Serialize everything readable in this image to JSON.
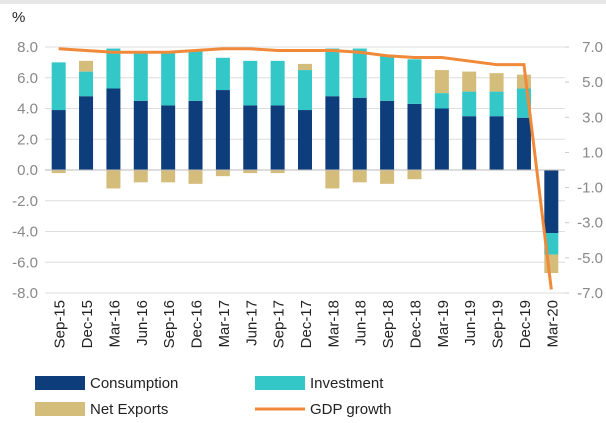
{
  "chart_data": {
    "type": "bar",
    "y_axis_label": "%",
    "categories": [
      "Sep-15",
      "Dec-15",
      "Mar-16",
      "Jun-16",
      "Sep-16",
      "Dec-16",
      "Mar-17",
      "Jun-17",
      "Sep-17",
      "Dec-17",
      "Mar-18",
      "Jun-18",
      "Sep-18",
      "Dec-18",
      "Mar-19",
      "Jun-19",
      "Sep-19",
      "Dec-19",
      "Mar-20"
    ],
    "series": [
      {
        "name": "Consumption",
        "color": "#0d3d7a",
        "values": [
          3.9,
          4.8,
          5.3,
          4.5,
          4.2,
          4.5,
          5.2,
          4.2,
          4.2,
          3.9,
          4.8,
          4.7,
          4.5,
          4.3,
          4.0,
          3.5,
          3.5,
          3.4,
          -4.1
        ]
      },
      {
        "name": "Investment",
        "color": "#33c7c7",
        "values": [
          3.1,
          1.6,
          2.6,
          3.1,
          3.4,
          3.3,
          2.1,
          2.9,
          2.9,
          2.6,
          3.1,
          3.2,
          3.0,
          2.9,
          1.0,
          1.6,
          1.6,
          1.9,
          -1.4
        ]
      },
      {
        "name": "Net Exports",
        "color": "#d4bc7a",
        "values": [
          -0.2,
          0.7,
          -1.2,
          -0.8,
          -0.8,
          -0.9,
          -0.4,
          -0.2,
          -0.2,
          0.4,
          -1.2,
          -0.8,
          -0.9,
          -0.6,
          1.5,
          1.3,
          1.2,
          0.9,
          -1.2
        ]
      },
      {
        "name": "GDP growth",
        "color": "#f08a3a",
        "type": "line",
        "axis": "y2",
        "values": [
          6.9,
          6.8,
          6.7,
          6.7,
          6.7,
          6.8,
          6.9,
          6.9,
          6.8,
          6.8,
          6.8,
          6.7,
          6.5,
          6.4,
          6.4,
          6.2,
          6.0,
          6.0,
          -6.8
        ]
      }
    ],
    "ylim": [
      -8,
      8
    ],
    "yticks": [
      {
        "value": 8,
        "label": "8.0"
      },
      {
        "value": 6,
        "label": "6.0"
      },
      {
        "value": 4,
        "label": "4.0"
      },
      {
        "value": 2,
        "label": "2.0"
      },
      {
        "value": 0,
        "label": "0.0"
      },
      {
        "value": -2,
        "label": "-2.0"
      },
      {
        "value": -4,
        "label": "-4.0"
      },
      {
        "value": -6,
        "label": "-6.0"
      },
      {
        "value": -8,
        "label": "-8.0"
      }
    ],
    "y2lim": [
      -7,
      7
    ],
    "y2ticks": [
      {
        "value": 7,
        "label": "7.0"
      },
      {
        "value": 5,
        "label": "5.0"
      },
      {
        "value": 3,
        "label": "3.0"
      },
      {
        "value": 1,
        "label": "1.0"
      },
      {
        "value": -1,
        "label": "-1.0"
      },
      {
        "value": -3,
        "label": "-3.0"
      },
      {
        "value": -5,
        "label": "-5.0"
      },
      {
        "value": -7,
        "label": "-7.0"
      }
    ],
    "grid": true,
    "legend": "bottom"
  }
}
